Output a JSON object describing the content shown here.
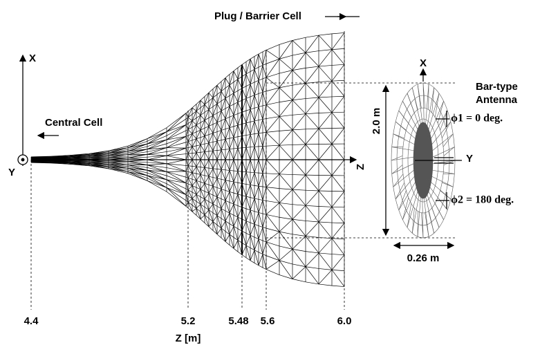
{
  "labels": {
    "plug_cell": "Plug / Barrier Cell",
    "central_cell": "Central Cell",
    "x_axis": "X",
    "y_axis": "Y",
    "z_axis": "Z",
    "z_axis_title": "Z [m]"
  },
  "z_ticks": [
    "4.4",
    "5.2",
    "5.48",
    "5.6",
    "6.0"
  ],
  "antenna": {
    "x_label": "X",
    "y_label": "Y",
    "height": "2.0 m",
    "width": "0.26 m",
    "title_line1": "Bar-type",
    "title_line2": "Antenna",
    "phi1": "ϕ1 = 0 deg.",
    "phi2": "ϕ2 = 180 deg."
  }
}
